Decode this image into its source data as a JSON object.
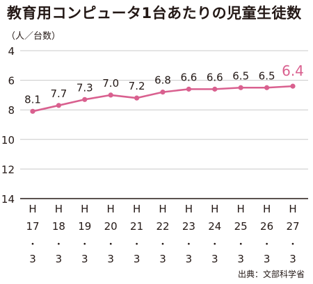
{
  "chart_data": {
    "type": "line",
    "title": "教育用コンピュータ1台あたりの児童生徒数",
    "unit_label": "（人／台数）",
    "source": "出典：文部科学省",
    "y_inverted": true,
    "ylim": [
      4,
      14
    ],
    "yticks": [
      4,
      6,
      8,
      10,
      12,
      14
    ],
    "grid": "horizontal",
    "categories": [
      [
        "H",
        "17",
        "・",
        "3"
      ],
      [
        "H",
        "18",
        "・",
        "3"
      ],
      [
        "H",
        "19",
        "・",
        "3"
      ],
      [
        "H",
        "20",
        "・",
        "3"
      ],
      [
        "H",
        "21",
        "・",
        "3"
      ],
      [
        "H",
        "22",
        "・",
        "3"
      ],
      [
        "H",
        "23",
        "・",
        "3"
      ],
      [
        "H",
        "24",
        "・",
        "3"
      ],
      [
        "H",
        "25",
        "・",
        "3"
      ],
      [
        "H",
        "26",
        "・",
        "3"
      ],
      [
        "H",
        "27",
        "・",
        "3"
      ]
    ],
    "series": [
      {
        "values": [
          8.1,
          7.7,
          7.3,
          7.0,
          7.2,
          6.8,
          6.6,
          6.6,
          6.5,
          6.5,
          6.4
        ],
        "labels": [
          "8.1",
          "7.7",
          "7.3",
          "7.0",
          "7.2",
          "6.8",
          "6.6",
          "6.6",
          "6.5",
          "6.5",
          "6.4"
        ],
        "highlight_last": true
      }
    ],
    "colors": {
      "line": "#d9608f",
      "highlight_label": "#d9608f",
      "grid": "#c9c9c9",
      "axis": "#231815",
      "text": "#231815"
    }
  }
}
